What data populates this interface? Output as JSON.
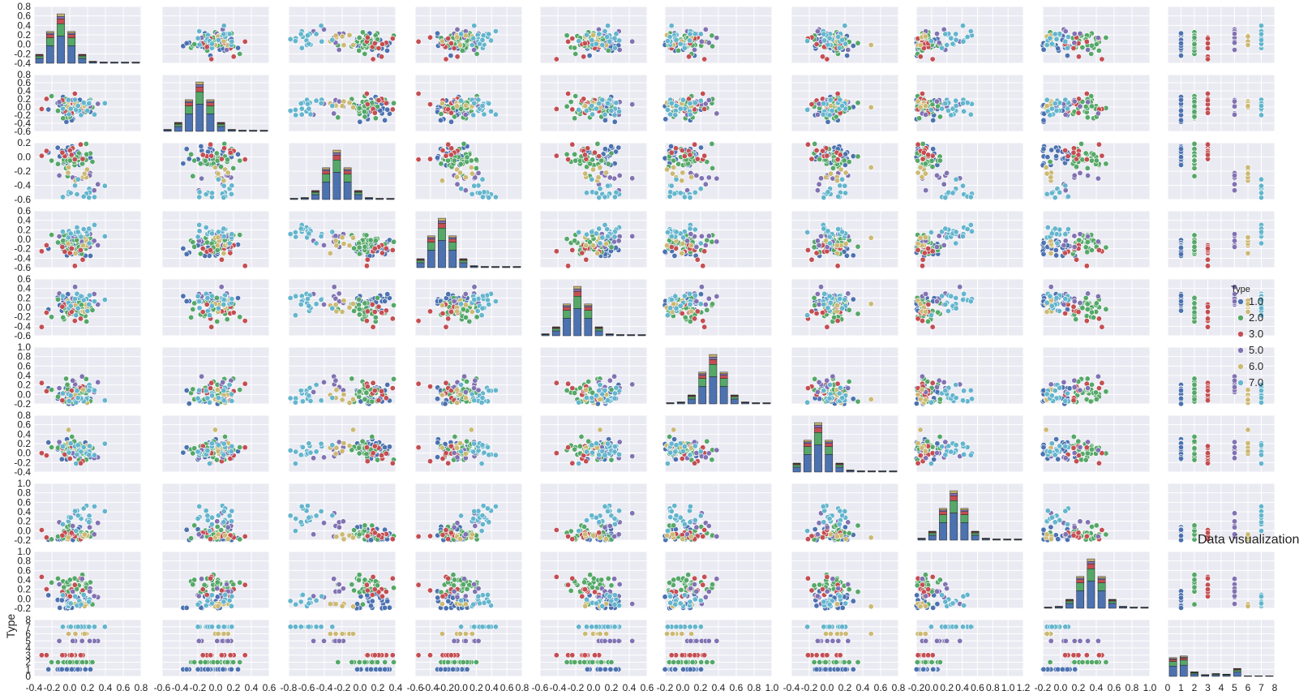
{
  "chart_data": {
    "type": "scatter",
    "kind": "pairplot",
    "annotation": "Data visualization",
    "hue_label": "Type",
    "grid": true,
    "legend_position": "right",
    "legend": {
      "title": "Type",
      "entries": [
        "1.0",
        "2.0",
        "3.0",
        "5.0",
        "6.0",
        "7.0"
      ]
    },
    "palette": [
      "#4c72b0",
      "#55a868",
      "#c44e52",
      "#8172b2",
      "#ccb974",
      "#64b5cd"
    ],
    "background_color": "#eaeaf2",
    "y_axis_label_last_row": "Type",
    "row_ylim": [
      [
        -0.4,
        0.8
      ],
      [
        -0.6,
        0.8
      ],
      [
        -0.7,
        0.4
      ],
      [
        -0.6,
        0.8
      ],
      [
        -0.6,
        0.6
      ],
      [
        -0.2,
        1.0
      ],
      [
        -0.4,
        0.8
      ],
      [
        -0.2,
        1.0
      ],
      [
        -0.2,
        1.0
      ],
      [
        0,
        8
      ]
    ],
    "row_ticks": [
      [
        "0.8",
        "0.6",
        "0.4",
        "0.2",
        "0.0",
        "-0.2",
        "-0.4"
      ],
      [
        "0.8",
        "0.6",
        "0.4",
        "0.2",
        "0.0",
        "-0.2",
        "-0.4",
        "-0.6"
      ],
      [
        "0.2",
        "0.0",
        "-0.2",
        "-0.4",
        "-0.6"
      ],
      [
        "0.6",
        "0.4",
        "0.2",
        "0.0",
        "-0.2",
        "-0.4",
        "-0.6"
      ],
      [
        "0.6",
        "0.4",
        "0.2",
        "0.0",
        "-0.2",
        "-0.4",
        "-0.6"
      ],
      [
        "1.0",
        "0.8",
        "0.6",
        "0.4",
        "0.2",
        "0.0",
        "-0.2"
      ],
      [
        "0.8",
        "0.6",
        "0.4",
        "0.2",
        "0.0",
        "-0.2",
        "-0.4"
      ],
      [
        "1.0",
        "0.8",
        "0.6",
        "0.4",
        "0.2",
        "0.0",
        "-0.2"
      ],
      [
        "1.0",
        "0.8",
        "0.6",
        "0.4",
        "0.2",
        "0.0",
        "-0.2"
      ],
      [
        "8",
        "7",
        "6",
        "5",
        "4",
        "3",
        "2",
        "1",
        "0"
      ]
    ],
    "col_xlim": [
      [
        -0.4,
        0.8
      ],
      [
        -0.6,
        0.6
      ],
      [
        -0.8,
        0.4
      ],
      [
        -0.6,
        0.8
      ],
      [
        -0.6,
        0.6
      ],
      [
        -0.2,
        1.0
      ],
      [
        -0.4,
        0.8
      ],
      [
        -0.2,
        1.2
      ],
      [
        -0.2,
        1.0
      ],
      [
        0,
        8
      ]
    ],
    "col_ticks": [
      [
        "-0.4",
        "-0.2",
        "0.0",
        "0.2",
        "0.4",
        "0.6",
        "0.8"
      ],
      [
        "-0.6",
        "-0.4",
        "-0.2",
        "0.0",
        "0.2",
        "0.4",
        "0.6"
      ],
      [
        "-0.8",
        "-0.6",
        "-0.4",
        "-0.2",
        "0.0",
        "0.2",
        "0.4"
      ],
      [
        "-0.6",
        "-0.4",
        "-0.2",
        "0.0",
        "0.2",
        "0.4",
        "0.6",
        "0.8"
      ],
      [
        "-0.6",
        "-0.4",
        "-0.2",
        "0.0",
        "0.2",
        "0.4",
        "0.6"
      ],
      [
        "-0.2",
        "0.0",
        "0.2",
        "0.4",
        "0.6",
        "0.8",
        "1.0"
      ],
      [
        "-0.4",
        "-0.2",
        "0.0",
        "0.2",
        "0.4",
        "0.6",
        "0.8"
      ],
      [
        "-0.2",
        "0.0",
        "0.2",
        "0.4",
        "0.6",
        "0.8",
        "1.0",
        "1.2"
      ],
      [
        "-0.2",
        "0.0",
        "0.2",
        "0.4",
        "0.6",
        "0.8",
        "1.0"
      ],
      [
        "0",
        "1",
        "2",
        "3",
        "4",
        "5",
        "6",
        "7",
        "8"
      ]
    ],
    "type_values": [
      1,
      2,
      3,
      5,
      6,
      7
    ],
    "type_hist_heights": [
      0.33,
      0.36,
      0.08,
      0.03,
      0.05,
      0.04,
      0.14
    ]
  }
}
